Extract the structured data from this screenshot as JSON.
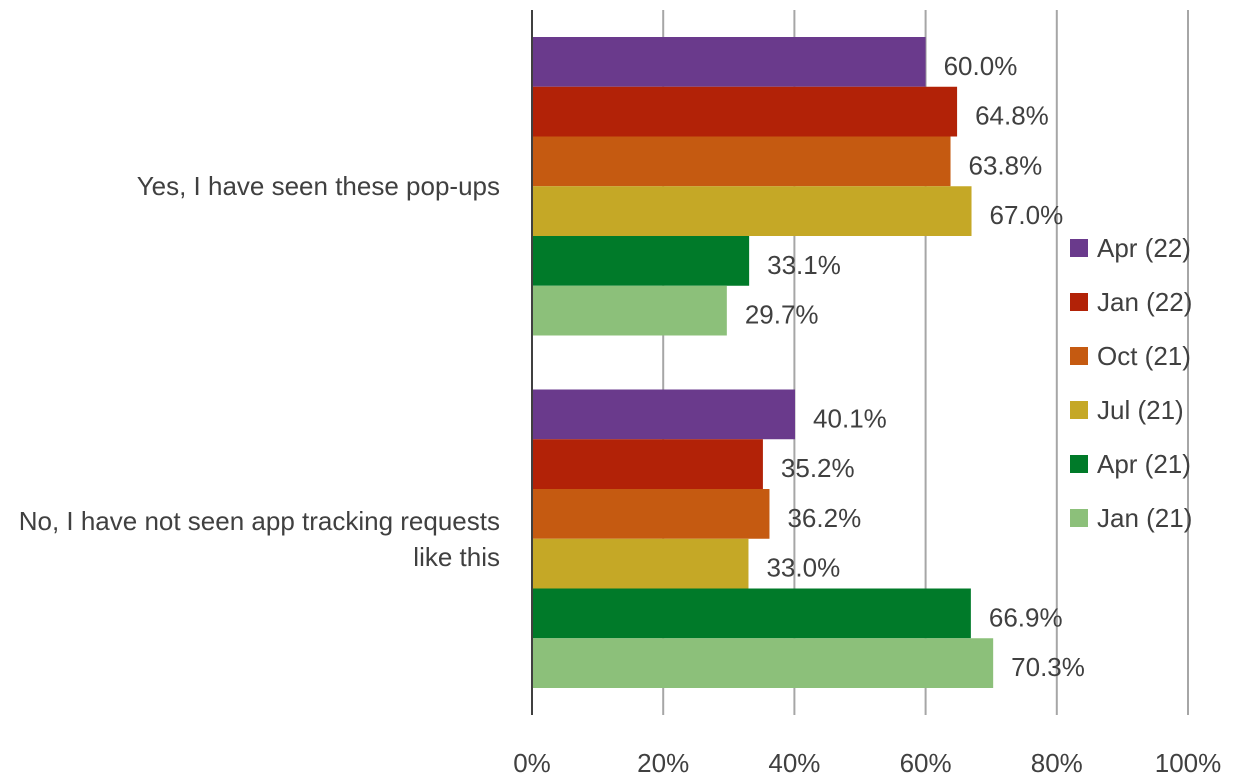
{
  "chart_data": {
    "type": "hbar",
    "categories": [
      "Yes, I have seen these pop-ups",
      "No, I have not seen app tracking requests like this"
    ],
    "series": [
      {
        "name": "Apr (22)",
        "color": "#6a3a8c",
        "values": [
          60.0,
          40.1
        ],
        "value_labels": [
          "60.0%",
          "40.1%"
        ]
      },
      {
        "name": "Jan (22)",
        "color": "#b22207",
        "values": [
          64.8,
          35.2
        ],
        "value_labels": [
          "64.8%",
          "35.2%"
        ]
      },
      {
        "name": "Oct (21)",
        "color": "#c55a11",
        "values": [
          63.8,
          36.2
        ],
        "value_labels": [
          "63.8%",
          "36.2%"
        ]
      },
      {
        "name": "Jul (21)",
        "color": "#c5a826",
        "values": [
          67.0,
          33.0
        ],
        "value_labels": [
          "67.0%",
          "33.0%"
        ]
      },
      {
        "name": "Apr (21)",
        "color": "#007a29",
        "values": [
          33.1,
          66.9
        ],
        "value_labels": [
          "33.1%",
          "66.9%"
        ]
      },
      {
        "name": "Jan (21)",
        "color": "#8cc07a",
        "values": [
          29.7,
          70.3
        ],
        "value_labels": [
          "29.7%",
          "70.3%"
        ]
      }
    ],
    "xlim": [
      0,
      100
    ],
    "xticks": [
      {
        "value": 0,
        "label": "0%"
      },
      {
        "value": 20,
        "label": "20%"
      },
      {
        "value": 40,
        "label": "40%"
      },
      {
        "value": 60,
        "label": "60%"
      },
      {
        "value": 80,
        "label": "80%"
      },
      {
        "value": 100,
        "label": "100%"
      }
    ],
    "grid": true,
    "legend": "right"
  }
}
